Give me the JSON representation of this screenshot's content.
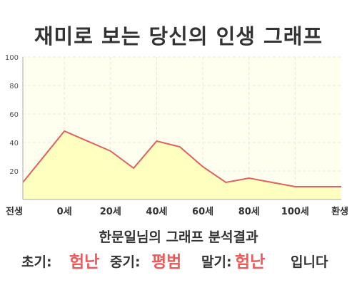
{
  "title": "재미로 보는 당신의 인생 그래프",
  "chart_data": {
    "type": "area",
    "x": [
      -18,
      0,
      20,
      30,
      40,
      50,
      60,
      70,
      80,
      90,
      100,
      110,
      120
    ],
    "y": [
      12,
      48,
      34,
      22,
      41,
      37,
      23,
      12,
      15,
      12,
      9,
      9,
      9
    ],
    "ylim": [
      0,
      100
    ],
    "yticks": [
      20,
      40,
      60,
      80,
      100
    ],
    "xtick_labels": [
      {
        "x": -18,
        "label": "전생"
      },
      {
        "x": 0,
        "label": "0세"
      },
      {
        "x": 20,
        "label": "20세"
      },
      {
        "x": 40,
        "label": "40세"
      },
      {
        "x": 60,
        "label": "60세"
      },
      {
        "x": 80,
        "label": "80세"
      },
      {
        "x": 100,
        "label": "100세"
      },
      {
        "x": 120,
        "label": "환생"
      }
    ],
    "grid": true,
    "colors": {
      "line": "#e06060",
      "fill": "#ffffc0",
      "plot_bg": "#fffff0",
      "grid": "#e8e8d8"
    }
  },
  "analysis": {
    "heading": "한문일님의 그래프 분석결과",
    "early_label": "초기:",
    "early_value": "험난",
    "mid_label": "중기:",
    "mid_value": "평범",
    "late_label": "말기:",
    "late_value": "험난",
    "suffix": "입니다"
  }
}
